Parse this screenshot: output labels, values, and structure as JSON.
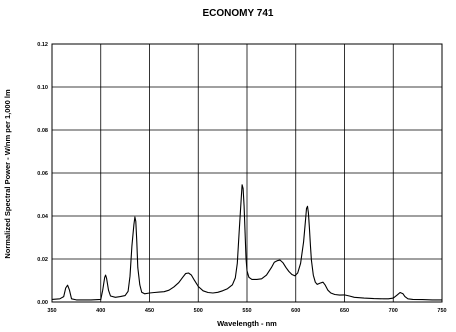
{
  "chart_data": {
    "type": "line",
    "title": "ECONOMY 741",
    "xlabel": "Wavelength  -  nm",
    "ylabel": "Normalized  Spectral  Power  -  W/nm per 1,000 lm",
    "xlim": [
      350,
      750
    ],
    "ylim": [
      0,
      0.12
    ],
    "grid": true,
    "xticks": [
      350,
      400,
      450,
      500,
      550,
      600,
      650,
      700,
      750
    ],
    "xtick_labels": [
      "350",
      "400",
      "450",
      "500",
      "550",
      "600",
      "650",
      "700",
      "750"
    ],
    "yticks": [
      0,
      0.02,
      0.04,
      0.06,
      0.08,
      0.1,
      0.12
    ],
    "ytick_labels": [
      "0.00",
      "0.02",
      "0.04",
      "0.06",
      "0.08",
      "0.10",
      "0.12"
    ],
    "series": [
      {
        "x": [
          350,
          358,
          362,
          364,
          366,
          368,
          370,
          375,
          390,
          400,
          402,
          404,
          405,
          406,
          408,
          410,
          415,
          420,
          425,
          428,
          430,
          432,
          434,
          435,
          436,
          437,
          438,
          440,
          442,
          445,
          450,
          455,
          460,
          465,
          470,
          475,
          480,
          484,
          487,
          490,
          493,
          496,
          500,
          505,
          510,
          515,
          520,
          525,
          530,
          535,
          538,
          540,
          542,
          544,
          545,
          546,
          547,
          548,
          549,
          550,
          552,
          555,
          560,
          565,
          570,
          575,
          578,
          581,
          584,
          587,
          590,
          593,
          596,
          599,
          602,
          605,
          608,
          610,
          611,
          612,
          613,
          614,
          615,
          616,
          618,
          620,
          622,
          625,
          628,
          630,
          633,
          636,
          640,
          645,
          650,
          655,
          660,
          670,
          680,
          690,
          695,
          700,
          704,
          707,
          710,
          712,
          715,
          720,
          730,
          740,
          750
        ],
        "y": [
          0.0012,
          0.0015,
          0.0025,
          0.0065,
          0.0078,
          0.0055,
          0.0015,
          0.001,
          0.001,
          0.0012,
          0.0055,
          0.0115,
          0.0125,
          0.011,
          0.0055,
          0.0028,
          0.0022,
          0.0025,
          0.003,
          0.005,
          0.012,
          0.026,
          0.036,
          0.0395,
          0.0375,
          0.028,
          0.016,
          0.008,
          0.0045,
          0.0038,
          0.0042,
          0.0044,
          0.0046,
          0.0048,
          0.0055,
          0.007,
          0.009,
          0.0115,
          0.0132,
          0.0135,
          0.0125,
          0.0102,
          0.0072,
          0.0052,
          0.0044,
          0.0042,
          0.0045,
          0.0052,
          0.0062,
          0.008,
          0.0112,
          0.018,
          0.033,
          0.048,
          0.0545,
          0.0528,
          0.0445,
          0.032,
          0.0205,
          0.0145,
          0.0115,
          0.0105,
          0.0105,
          0.0108,
          0.0125,
          0.016,
          0.0185,
          0.0192,
          0.0195,
          0.0182,
          0.016,
          0.0142,
          0.0128,
          0.0122,
          0.0135,
          0.018,
          0.028,
          0.038,
          0.0435,
          0.0445,
          0.0415,
          0.0345,
          0.0265,
          0.0195,
          0.0125,
          0.0092,
          0.0082,
          0.0088,
          0.0092,
          0.008,
          0.0055,
          0.0042,
          0.0035,
          0.0032,
          0.0033,
          0.0028,
          0.0022,
          0.0018,
          0.0016,
          0.0015,
          0.0015,
          0.0018,
          0.0032,
          0.0044,
          0.0038,
          0.0025,
          0.0015,
          0.0012,
          0.0011,
          0.001,
          0.001
        ]
      }
    ]
  }
}
